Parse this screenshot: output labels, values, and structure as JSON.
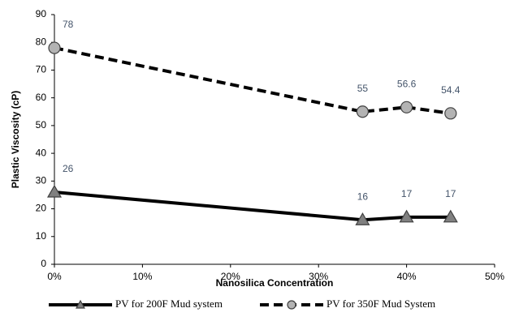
{
  "chart_data": {
    "type": "line",
    "x_label": "Nanosilica Concentration",
    "y_label": "Plastic Viscosity (cP)",
    "x": [
      0,
      35,
      40,
      45
    ],
    "series": [
      {
        "name": "PV for 200F Mud system",
        "color": "#000000",
        "marker_color": "#808080",
        "marker": "triangle",
        "line_style": "solid",
        "values": [
          26,
          16,
          17,
          17
        ]
      },
      {
        "name": "PV for 350F Mud System",
        "color": "#000000",
        "marker_color": "#b3b3b3",
        "marker": "circle",
        "line_style": "dashed",
        "values": [
          78,
          55,
          56.6,
          54.4
        ]
      }
    ],
    "xlim": [
      0,
      50
    ],
    "xticks": [
      {
        "value": 0,
        "label": "0%"
      },
      {
        "value": 10,
        "label": "10%"
      },
      {
        "value": 20,
        "label": "20%"
      },
      {
        "value": 30,
        "label": "30%"
      },
      {
        "value": 40,
        "label": "40%"
      },
      {
        "value": 50,
        "label": "50%"
      }
    ],
    "ylim": [
      0,
      90
    ],
    "yticks": [
      0,
      10,
      20,
      30,
      40,
      50,
      60,
      70,
      80,
      90
    ],
    "grid": false,
    "legend": "bottom"
  }
}
